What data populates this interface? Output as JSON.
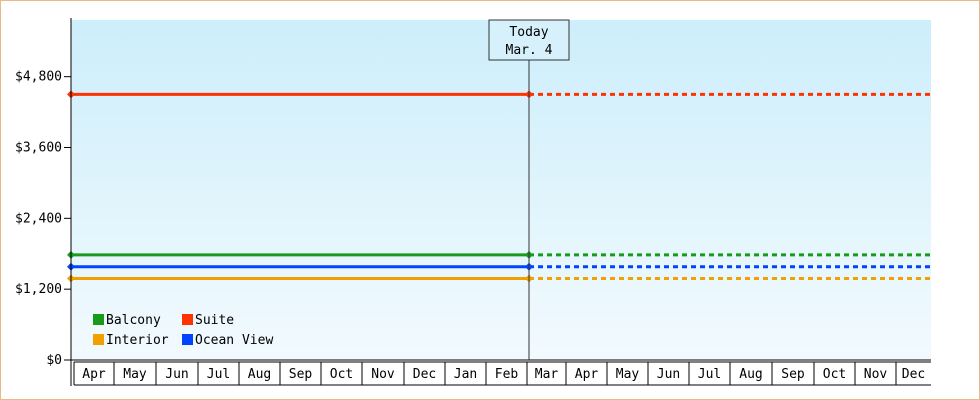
{
  "chart_data": {
    "type": "line",
    "title": "",
    "xlabel": "",
    "ylabel": "",
    "ylim": [
      0,
      5760
    ],
    "yticks": [
      0,
      1200,
      2400,
      3600,
      4800
    ],
    "ytick_labels": [
      "$0",
      "$1,200",
      "$2,400",
      "$3,600",
      "$4,800"
    ],
    "months": [
      "Apr",
      "May",
      "Jun",
      "Jul",
      "Aug",
      "Sep",
      "Oct",
      "Nov",
      "Dec",
      "Jan",
      "Feb",
      "Mar",
      "Apr",
      "May",
      "Jun",
      "Jul",
      "Aug",
      "Sep",
      "Oct",
      "Nov",
      "Dec"
    ],
    "today_marker": {
      "line1": "Today",
      "line2": "Mar. 4"
    },
    "history_start": "Apr 1",
    "history_end": "Mar 4",
    "projection_end": "Dec 31",
    "series": [
      {
        "name": "Balcony",
        "color": "#1a9a1a",
        "value": 1780
      },
      {
        "name": "Suite",
        "color": "#ff3300",
        "value": 4500
      },
      {
        "name": "Interior",
        "color": "#f0a000",
        "value": 1380
      },
      {
        "name": "Ocean View",
        "color": "#0044ff",
        "value": 1580
      }
    ],
    "legend_position": "bottom-left",
    "background_gradient": [
      "#cdeefb",
      "#f2fafe"
    ]
  }
}
